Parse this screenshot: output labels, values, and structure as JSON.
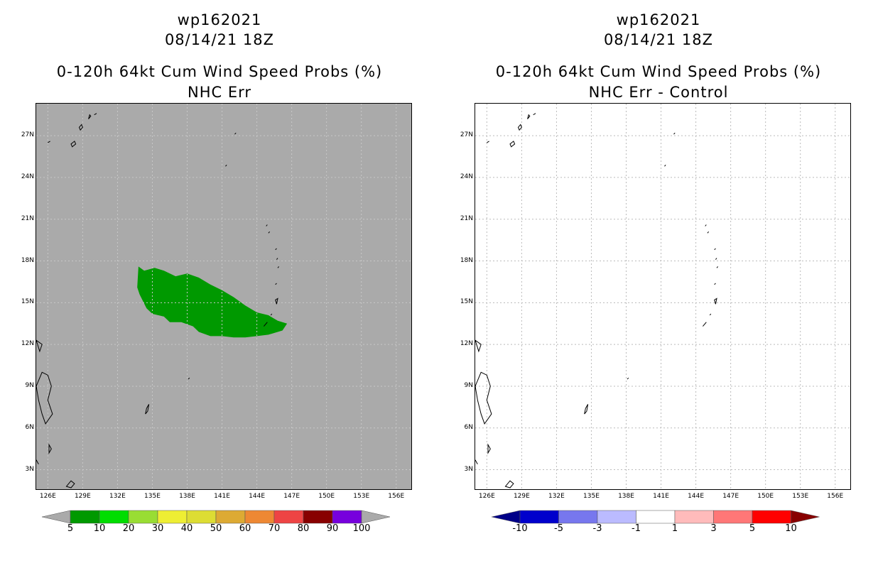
{
  "left_panel": {
    "title_line1": "wp162021",
    "title_line2": "08/14/21 18Z",
    "title_line3": "0-120h 64kt Cum Wind Speed Probs (%)",
    "title_line4": "NHC Err",
    "background_color": "#aaaaaa",
    "probability_area_color": "#009900",
    "colorbar": {
      "labels": [
        "5",
        "10",
        "20",
        "30",
        "40",
        "50",
        "60",
        "70",
        "80",
        "90",
        "100"
      ],
      "colors": [
        "#009900",
        "#00dd00",
        "#99dd33",
        "#eeee33",
        "#dddd33",
        "#ddaa33",
        "#ee8833",
        "#ee4444",
        "#880000",
        "#7700dd"
      ],
      "end_color": "#aaaaaa"
    }
  },
  "right_panel": {
    "title_line1": "wp162021",
    "title_line2": "08/14/21 18Z",
    "title_line3": "0-120h 64kt Cum Wind Speed Probs (%)",
    "title_line4": "NHC Err - Control",
    "background_color": "#ffffff",
    "colorbar": {
      "labels": [
        "-10",
        "-5",
        "-3",
        "-1",
        "1",
        "3",
        "5",
        "10"
      ],
      "colors": [
        "#0000cc",
        "#7777ee",
        "#bbbbff",
        "#ffffff",
        "#ffbbbb",
        "#ff7777",
        "#ff0000"
      ],
      "end_left_color": "#000088",
      "end_right_color": "#880000"
    }
  },
  "axes": {
    "lat_labels": [
      "27N",
      "24N",
      "21N",
      "18N",
      "15N",
      "12N",
      "9N",
      "6N",
      "3N"
    ],
    "lon_labels": [
      "126E",
      "129E",
      "132E",
      "135E",
      "138E",
      "141E",
      "144E",
      "147E",
      "150E",
      "153E",
      "156E"
    ]
  }
}
